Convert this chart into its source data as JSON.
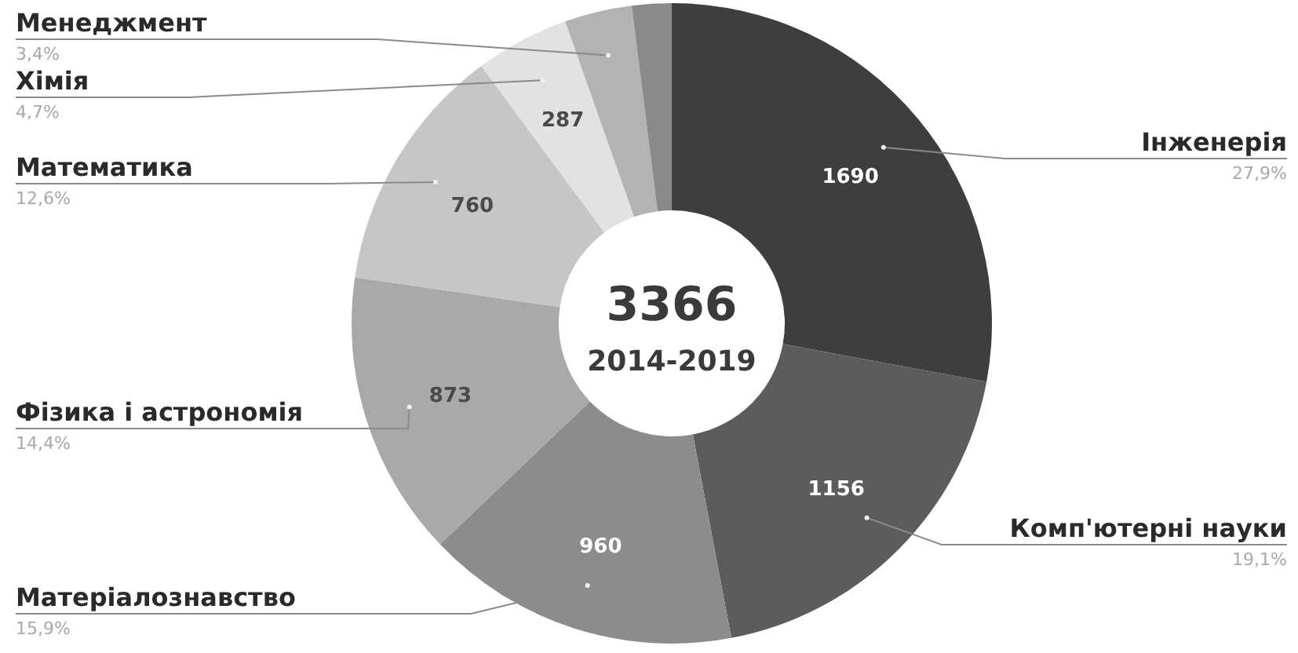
{
  "chart_data": {
    "type": "donut",
    "title": "3366",
    "subtitle": "2014-2019",
    "categories": [
      "Інженерія",
      "Комп'ютерні науки",
      "Матеріалознавство",
      "Фізика і астрономія",
      "Математика",
      "Хімія",
      "Менеджмент",
      null
    ],
    "values": [
      1690,
      1156,
      960,
      873,
      760,
      287,
      206,
      121
    ],
    "value_labels": [
      "1690",
      "1156",
      "960",
      "873",
      "760",
      "287",
      null,
      null
    ],
    "annotations": [
      "27,9%",
      "19,1%",
      "15,9%",
      "14,4%",
      "12,6%",
      "4,7%",
      "3,4%"
    ],
    "colors": [
      "#3e3e3e",
      "#5c5c5c",
      "#8c8c8c",
      "#a9a9a9",
      "#c6c6c6",
      "#e2e2e2",
      "#b3b3b3",
      "#8a8a8a"
    ]
  }
}
